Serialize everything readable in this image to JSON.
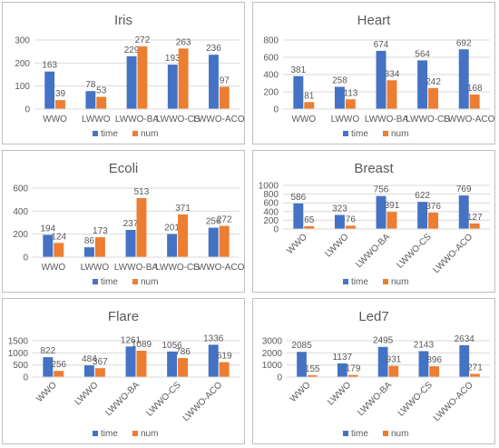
{
  "colors": {
    "time": "#4472C4",
    "num": "#ED7D31",
    "grid": "#D9D9D9",
    "text": "#595959",
    "border": "#BFBFBF"
  },
  "chart_data": [
    {
      "type": "bar",
      "title": "Iris",
      "categories": [
        "WWO",
        "LWWO",
        "LWWO-BA",
        "LWWO-CS",
        "LWWO-ACO"
      ],
      "series": [
        {
          "name": "time",
          "values": [
            163,
            78,
            229,
            193,
            236
          ]
        },
        {
          "name": "num",
          "values": [
            39,
            53,
            272,
            263,
            97
          ]
        }
      ],
      "ylim": [
        0,
        300
      ],
      "yticks": [
        "0",
        "100",
        "200",
        "300"
      ],
      "grid": true,
      "legend": "bottom",
      "xlabel_rotated": false
    },
    {
      "type": "bar",
      "title": "Heart",
      "categories": [
        "WWO",
        "LWWO",
        "LWWO-BA",
        "LWWO-CS",
        "LWWO-ACO"
      ],
      "series": [
        {
          "name": "time",
          "values": [
            381,
            258,
            674,
            564,
            692
          ]
        },
        {
          "name": "num",
          "values": [
            81,
            113,
            334,
            242,
            168
          ]
        }
      ],
      "ylim": [
        0,
        800
      ],
      "yticks": [
        "0",
        "200",
        "400",
        "600",
        "800"
      ],
      "grid": true,
      "legend": "bottom",
      "xlabel_rotated": false
    },
    {
      "type": "bar",
      "title": "Ecoli",
      "categories": [
        "WWO",
        "LWWO",
        "LWWO-BA",
        "LWWO-CS",
        "LWWO-ACO"
      ],
      "series": [
        {
          "name": "time",
          "values": [
            194,
            86,
            237,
            201,
            256
          ]
        },
        {
          "name": "num",
          "values": [
            124,
            173,
            513,
            371,
            272
          ]
        }
      ],
      "ylim": [
        0,
        600
      ],
      "yticks": [
        "0",
        "200",
        "400",
        "600"
      ],
      "grid": true,
      "legend": "bottom",
      "xlabel_rotated": false
    },
    {
      "type": "bar",
      "title": "Breast",
      "categories": [
        "WWO",
        "LWWO",
        "LWWO-BA",
        "LWWO-CS",
        "LWWO-ACO"
      ],
      "series": [
        {
          "name": "time",
          "values": [
            586,
            323,
            756,
            622,
            769
          ]
        },
        {
          "name": "num",
          "values": [
            65,
            76,
            391,
            376,
            127
          ]
        }
      ],
      "ylim": [
        0,
        1000
      ],
      "yticks": [
        "0",
        "200",
        "400",
        "600",
        "800",
        "1000"
      ],
      "grid": true,
      "legend": "bottom",
      "xlabel_rotated": true
    },
    {
      "type": "bar",
      "title": "Flare",
      "categories": [
        "WWO",
        "LWWO",
        "LWWO-BA",
        "LWWO-CS",
        "LWWO-ACO"
      ],
      "series": [
        {
          "name": "time",
          "values": [
            822,
            484,
            1261,
            1056,
            1336
          ]
        },
        {
          "name": "num",
          "values": [
            256,
            367,
            1089,
            786,
            619
          ]
        }
      ],
      "ylim": [
        0,
        1500
      ],
      "yticks": [
        "0",
        "500",
        "1000",
        "1500"
      ],
      "grid": true,
      "legend": "bottom",
      "xlabel_rotated": true
    },
    {
      "type": "bar",
      "title": "Led7",
      "categories": [
        "WWO",
        "LWWO",
        "LWWO-BA",
        "LWWO-CS",
        "LWWO-ACO"
      ],
      "series": [
        {
          "name": "time",
          "values": [
            2085,
            1137,
            2495,
            2143,
            2634
          ]
        },
        {
          "name": "num",
          "values": [
            155,
            179,
            931,
            896,
            271
          ]
        }
      ],
      "ylim": [
        0,
        3000
      ],
      "yticks": [
        "0",
        "1000",
        "2000",
        "3000"
      ],
      "grid": true,
      "legend": "bottom",
      "xlabel_rotated": true
    }
  ]
}
